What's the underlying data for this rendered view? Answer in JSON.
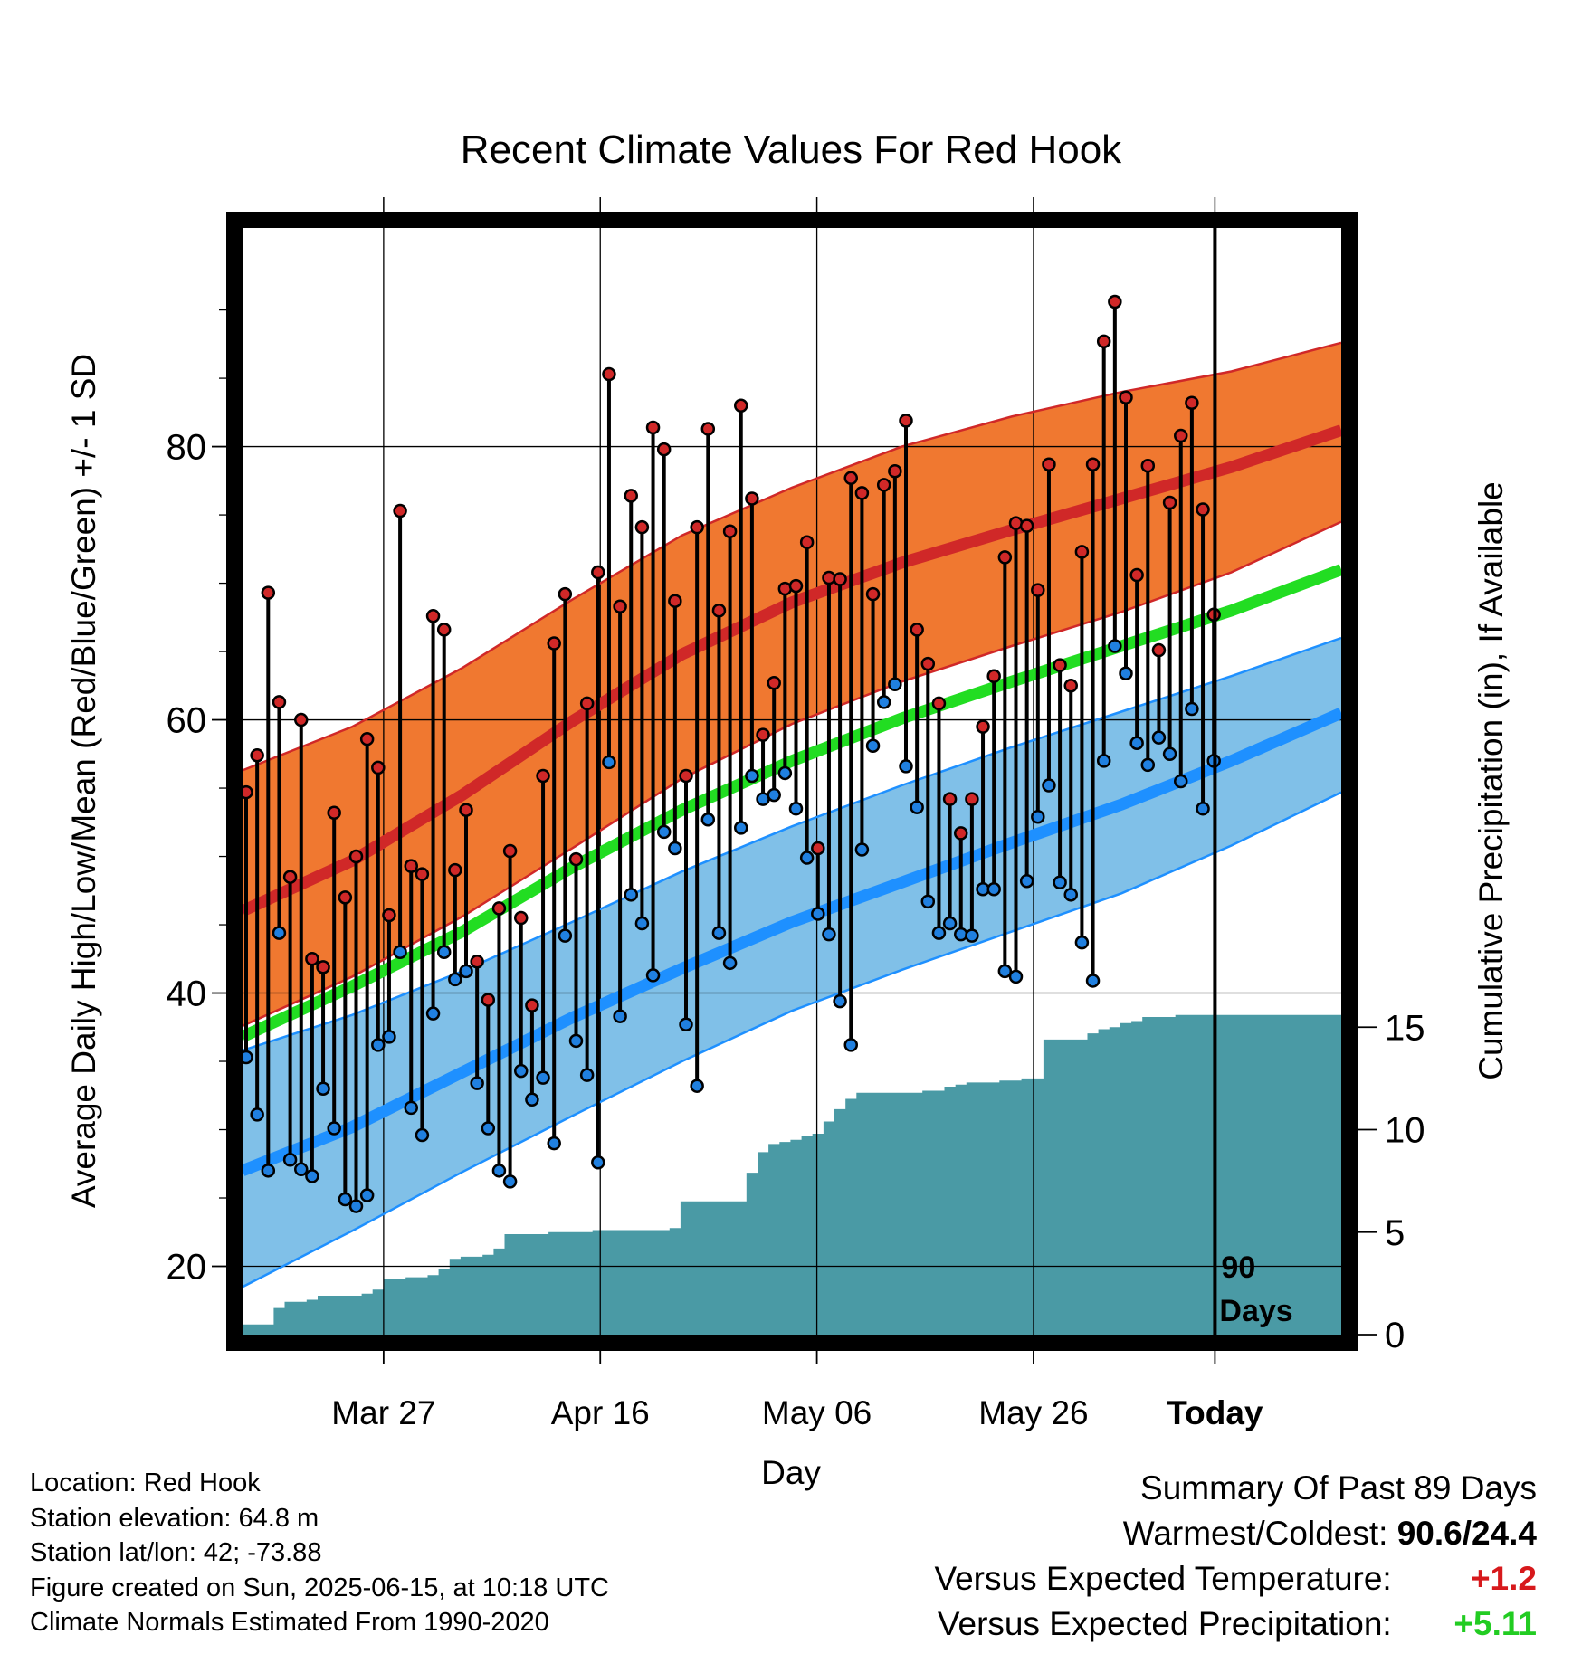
{
  "chart_data": {
    "type": "line",
    "title": "Recent Climate Values For Red Hook",
    "xlabel": "Day",
    "ylabel": "Average Daily High/Low/Mean (Red/Blue/Green) +/- 1 SD",
    "y2label": "Cumulative Precipitation (in), If Available",
    "x_tick_labels": [
      "Mar 27",
      "Apr 16",
      "May 06",
      "May 26",
      "Today"
    ],
    "y_ticks": [
      20,
      40,
      60,
      80
    ],
    "y2_ticks": [
      0,
      5,
      10,
      15
    ],
    "ylim": [
      15,
      96
    ],
    "y2lim": [
      0,
      54
    ],
    "today_label_line1": "90",
    "today_label_line2": "Days",
    "grid": true,
    "colors": {
      "high_band": "#f07830",
      "high_mean": "#d02828",
      "low_band": "#80c0e8",
      "low_mean": "#1e90ff",
      "mean": "#22dd22",
      "precip": "#4a9aa5",
      "high_marker": "#d02828",
      "low_marker": "#2080e0"
    },
    "normals": {
      "day": [
        0,
        10,
        20,
        30,
        40,
        50,
        60,
        70,
        80,
        90,
        100
      ],
      "high_upper": [
        56.3,
        59.5,
        63.8,
        68.8,
        73.5,
        77.0,
        80.0,
        82.2,
        84.0,
        85.5,
        87.6
      ],
      "high_mean": [
        46.0,
        49.7,
        54.5,
        59.9,
        64.8,
        68.6,
        71.5,
        73.9,
        76.2,
        78.5,
        81.2
      ],
      "high_lower": [
        37.6,
        41.2,
        45.6,
        50.6,
        55.7,
        59.7,
        62.8,
        65.4,
        67.9,
        70.8,
        74.5
      ],
      "mean": [
        36.8,
        40.5,
        44.5,
        49.2,
        53.4,
        57.0,
        60.1,
        62.8,
        65.4,
        68.0,
        71.0
      ],
      "low_upper": [
        35.8,
        38.4,
        41.6,
        45.2,
        48.9,
        52.2,
        55.2,
        58.0,
        60.6,
        63.2,
        66.0
      ],
      "low_mean": [
        27.0,
        30.2,
        34.2,
        38.2,
        41.8,
        45.2,
        48.1,
        51.0,
        53.8,
        57.0,
        60.5
      ],
      "low_lower": [
        18.5,
        22.6,
        26.9,
        31.0,
        35.0,
        38.7,
        41.7,
        44.5,
        47.3,
        50.8,
        54.7
      ]
    },
    "series": [
      {
        "name": "High",
        "values": [
          54.7,
          57.4,
          69.3,
          61.3,
          48.5,
          60.0,
          42.5,
          41.9,
          53.2,
          47.0,
          50.0,
          58.6,
          56.5,
          45.7,
          75.3,
          49.3,
          48.7,
          67.6,
          66.6,
          49.0,
          53.4,
          42.3,
          39.5,
          46.2,
          50.4,
          45.5,
          39.1,
          55.9,
          65.6,
          69.2,
          49.8,
          61.2,
          70.8,
          85.3,
          68.3,
          76.4,
          74.1,
          81.4,
          79.8,
          68.7,
          55.9,
          74.1,
          81.3,
          68.0,
          73.8,
          83.0,
          76.2,
          58.9,
          62.7,
          69.6,
          69.8,
          73.0,
          50.6,
          70.4,
          70.3,
          77.7,
          76.6,
          69.2,
          77.2,
          78.2,
          81.9,
          66.6,
          64.1,
          61.2,
          54.2,
          51.7,
          54.2,
          59.5,
          63.2,
          71.9,
          74.4,
          74.2,
          69.5,
          78.7,
          64.0,
          62.5,
          72.3,
          78.7,
          87.7,
          90.6,
          83.6,
          70.6,
          78.6,
          65.1,
          75.9,
          80.8,
          83.2,
          75.4,
          67.7
        ]
      },
      {
        "name": "Low",
        "values": [
          35.3,
          31.1,
          27.0,
          44.4,
          27.8,
          27.1,
          26.6,
          33.0,
          30.1,
          24.9,
          24.4,
          25.2,
          36.2,
          36.8,
          43.0,
          31.6,
          29.6,
          38.5,
          43.0,
          41.0,
          41.6,
          33.4,
          30.1,
          27.0,
          26.2,
          34.3,
          32.2,
          33.8,
          29.0,
          44.2,
          36.5,
          34.0,
          27.6,
          56.9,
          38.3,
          47.2,
          45.1,
          41.3,
          51.8,
          50.6,
          37.7,
          33.2,
          52.7,
          44.4,
          42.2,
          52.1,
          55.9,
          54.2,
          54.5,
          56.1,
          53.5,
          49.9,
          45.8,
          44.3,
          39.4,
          36.2,
          50.5,
          58.1,
          61.3,
          62.6,
          56.6,
          53.6,
          46.7,
          44.4,
          45.1,
          44.3,
          44.2,
          47.6,
          47.6,
          41.6,
          41.2,
          48.2,
          52.9,
          55.2,
          48.1,
          47.2,
          43.7,
          40.9,
          57.0,
          65.4,
          63.4,
          58.3,
          56.7,
          58.7,
          57.5,
          55.5,
          60.8,
          53.5,
          57.0
        ]
      }
    ],
    "precip_cumulative": [
      0.5,
      0.5,
      0.5,
      1.3,
      1.6,
      1.6,
      1.7,
      1.9,
      1.9,
      1.9,
      1.9,
      2.0,
      2.2,
      2.7,
      2.7,
      2.8,
      2.8,
      2.9,
      3.2,
      3.7,
      3.8,
      3.8,
      3.9,
      4.2,
      4.9,
      4.9,
      4.9,
      4.9,
      5.0,
      5.0,
      5.0,
      5.0,
      5.1,
      5.1,
      5.1,
      5.1,
      5.1,
      5.1,
      5.1,
      5.2,
      6.5,
      6.5,
      6.5,
      6.5,
      6.5,
      6.5,
      7.9,
      8.9,
      9.3,
      9.4,
      9.5,
      9.7,
      9.8,
      10.4,
      11.0,
      11.5,
      11.8,
      11.8,
      11.8,
      11.8,
      11.8,
      11.8,
      11.9,
      11.9,
      12.1,
      12.2,
      12.3,
      12.3,
      12.3,
      12.4,
      12.4,
      12.5,
      12.5,
      14.4,
      14.4,
      14.4,
      14.4,
      14.7,
      14.9,
      15.0,
      15.2,
      15.3,
      15.5,
      15.5,
      15.5,
      15.6,
      15.6,
      15.6,
      15.6,
      15.6,
      15.6
    ]
  },
  "footer": {
    "location": "Location: Red Hook",
    "elevation": "Station elevation: 64.8 m",
    "latlon": "Station lat/lon: 42; -73.88",
    "created": "Figure created on Sun, 2025-06-15, at 10:18 UTC",
    "normals_period": "Climate Normals Estimated From 1990-2020"
  },
  "summary": {
    "title": "Summary Of Past 89 Days",
    "warmest_label": "Warmest/Coldest:",
    "warmest_value": "90.6/24.4",
    "temp_label": "Versus Expected Temperature:",
    "temp_value": "+1.2",
    "precip_label": "Versus Expected Precipitation:",
    "precip_value": "+5.11"
  }
}
